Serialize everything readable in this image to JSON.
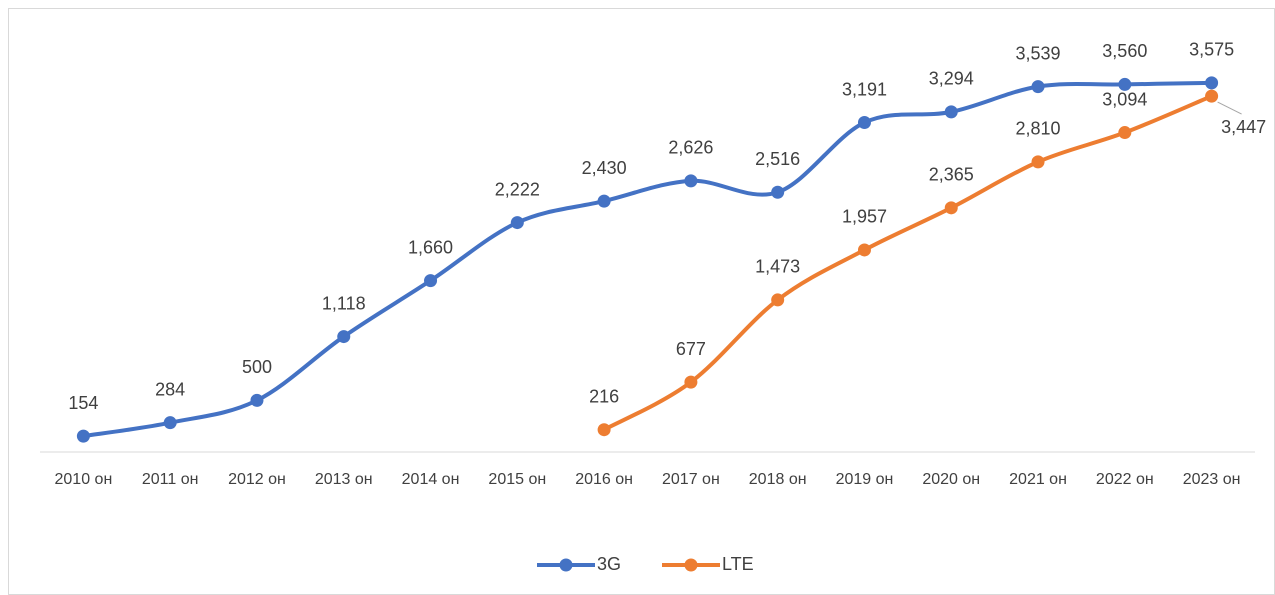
{
  "chart_data": {
    "type": "line",
    "categories": [
      "2010 он",
      "2011 он",
      "2012 он",
      "2013 он",
      "2014 он",
      "2015 он",
      "2016 он",
      "2017 он",
      "2018 он",
      "2019 он",
      "2020 он",
      "2021 он",
      "2022 он",
      "2023 он"
    ],
    "series": [
      {
        "name": "3G",
        "color": "#4472c4",
        "values": [
          154,
          284,
          500,
          1118,
          1660,
          2222,
          2430,
          2626,
          2516,
          3191,
          3294,
          3539,
          3560,
          3575
        ],
        "value_labels": [
          "154",
          "284",
          "500",
          "1,118",
          "1,660",
          "2,222",
          "2,430",
          "2,626",
          "2,516",
          "3,191",
          "3,294",
          "3,539",
          "3,560",
          "3,575"
        ]
      },
      {
        "name": "LTE",
        "color": "#ed7d31",
        "values": [
          null,
          null,
          null,
          null,
          null,
          null,
          216,
          677,
          1473,
          1957,
          2365,
          2810,
          3094,
          3447
        ],
        "value_labels": [
          null,
          null,
          null,
          null,
          null,
          null,
          "216",
          "677",
          "1,473",
          "1,957",
          "2,365",
          "2,810",
          "3,094",
          "3,447"
        ]
      }
    ],
    "ylim": [
      0,
      4000
    ],
    "legend": "bottom"
  }
}
